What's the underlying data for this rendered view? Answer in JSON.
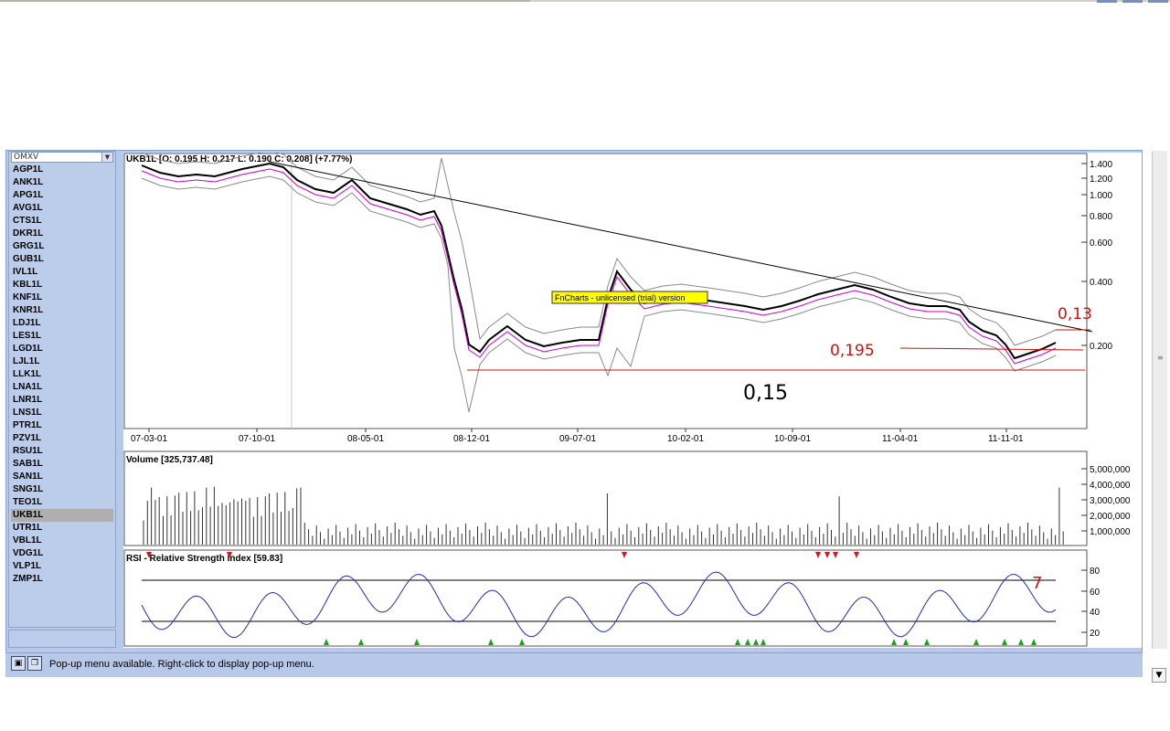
{
  "exchange_select": {
    "value": "OMXV"
  },
  "symbols": [
    "AGP1L",
    "ANK1L",
    "APG1L",
    "AVG1L",
    "CTS1L",
    "DKR1L",
    "GRG1L",
    "GUB1L",
    "IVL1L",
    "KBL1L",
    "KNF1L",
    "KNR1L",
    "LDJ1L",
    "LES1L",
    "LGD1L",
    "LJL1L",
    "LLK1L",
    "LNA1L",
    "LNR1L",
    "LNS1L",
    "PTR1L",
    "PZV1L",
    "RSU1L",
    "SAB1L",
    "SAN1L",
    "SNG1L",
    "TEO1L",
    "UKB1L",
    "UTR1L",
    "VBL1L",
    "VDG1L",
    "VLP1L",
    "ZMP1L"
  ],
  "selected_symbol": "UKB1L",
  "price_panel": {
    "title": "UKB1L  [O: 0.195  H: 0.217  L: 0.190  C: 0.208]  (+7.77%)",
    "y_ticks": [
      "1.400",
      "1.200",
      "1.000",
      "0.800",
      "0.600",
      "0.400",
      "0.200"
    ],
    "x_ticks": [
      "07-03-01",
      "07-10-01",
      "08-05-01",
      "08-12-01",
      "09-07-01",
      "10-02-01",
      "10-09-01",
      "11-04-01",
      "11-11-01"
    ],
    "watermark": "FnCharts - unlicensed (trial) version",
    "annotations": [
      "0,13",
      "0,195",
      "0,15"
    ]
  },
  "volume_panel": {
    "title": "Volume [325,737.48]",
    "y_ticks": [
      "5,000,000",
      "4,000,000",
      "3,000,000",
      "2,000,000",
      "1,000,000"
    ]
  },
  "rsi_panel": {
    "title": "RSI - Relative Strength Index [59.83]",
    "y_ticks": [
      "80",
      "60",
      "40",
      "20"
    ],
    "annotation": "7"
  },
  "status": {
    "text": "Pop-up menu available. Right-click to display pop-up menu."
  },
  "colors": {
    "panel_bg": "#b7c8e8",
    "price": "#000000",
    "ma": "#cc00cc",
    "band": "#8a8a8a",
    "rsi": "#1f2fa8",
    "buy": "#1aa31a",
    "sell": "#d41a1a",
    "ink": "#d01010"
  }
}
